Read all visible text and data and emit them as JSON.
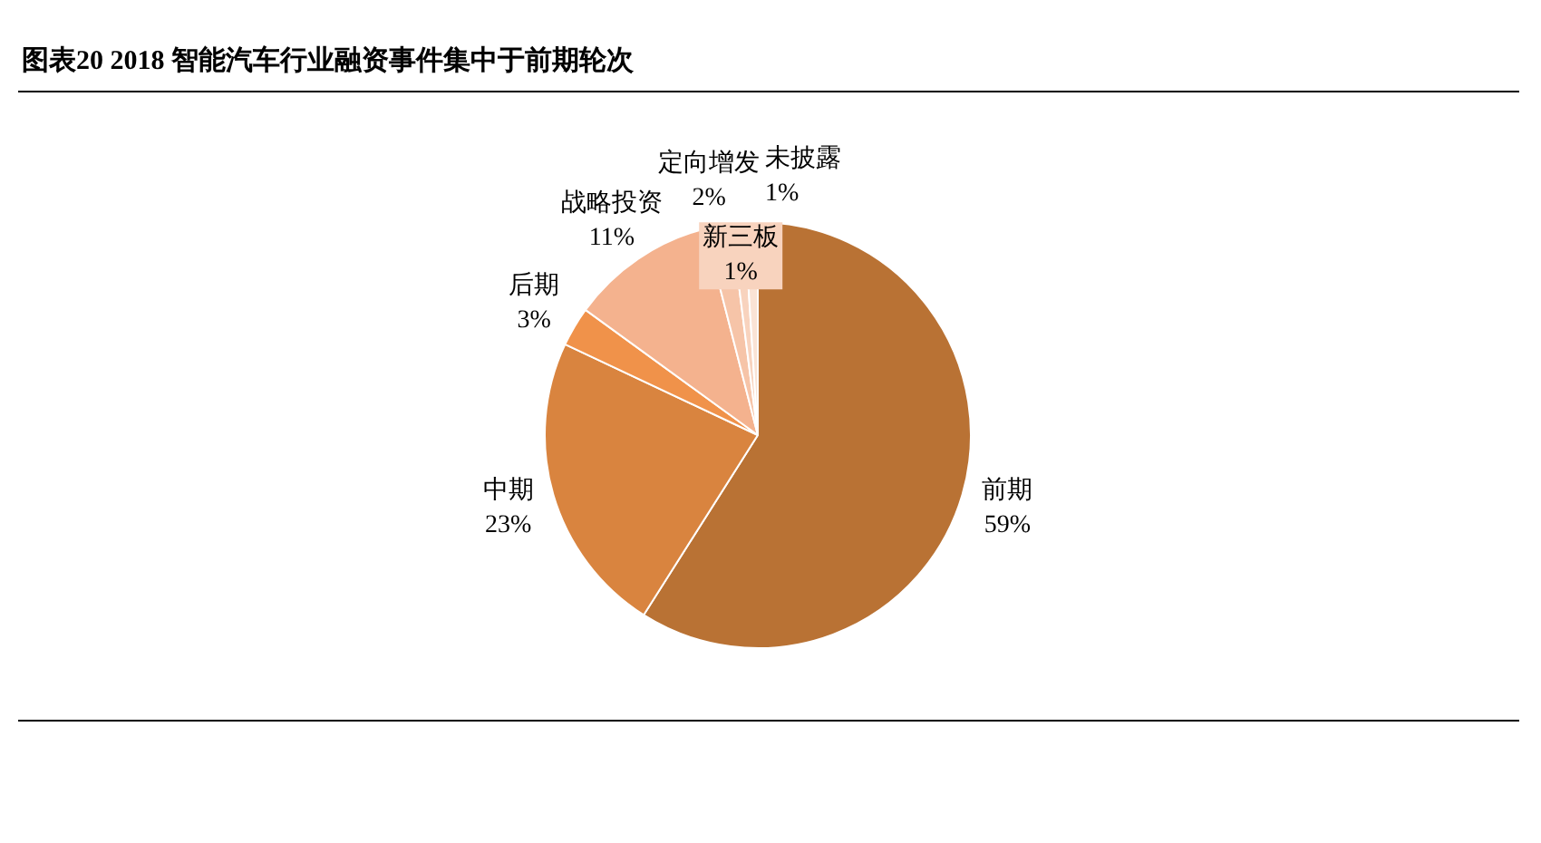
{
  "chart_data": {
    "type": "pie",
    "title": "图表20 2018 智能汽车行业融资事件集中于前期轮次",
    "categories": [
      "前期",
      "中期",
      "后期",
      "战略投资",
      "定向增发",
      "新三板",
      "未披露"
    ],
    "values": [
      59,
      23,
      3,
      11,
      2,
      1,
      1
    ],
    "colors": [
      "#b97234",
      "#d9843f",
      "#f0924a",
      "#f4b28e",
      "#f6c4a8",
      "#f8d3be",
      "#fae3d5"
    ],
    "value_labels": [
      "59%",
      "23%",
      "3%",
      "11%",
      "2%",
      "1%",
      "1%"
    ],
    "legend": false
  }
}
